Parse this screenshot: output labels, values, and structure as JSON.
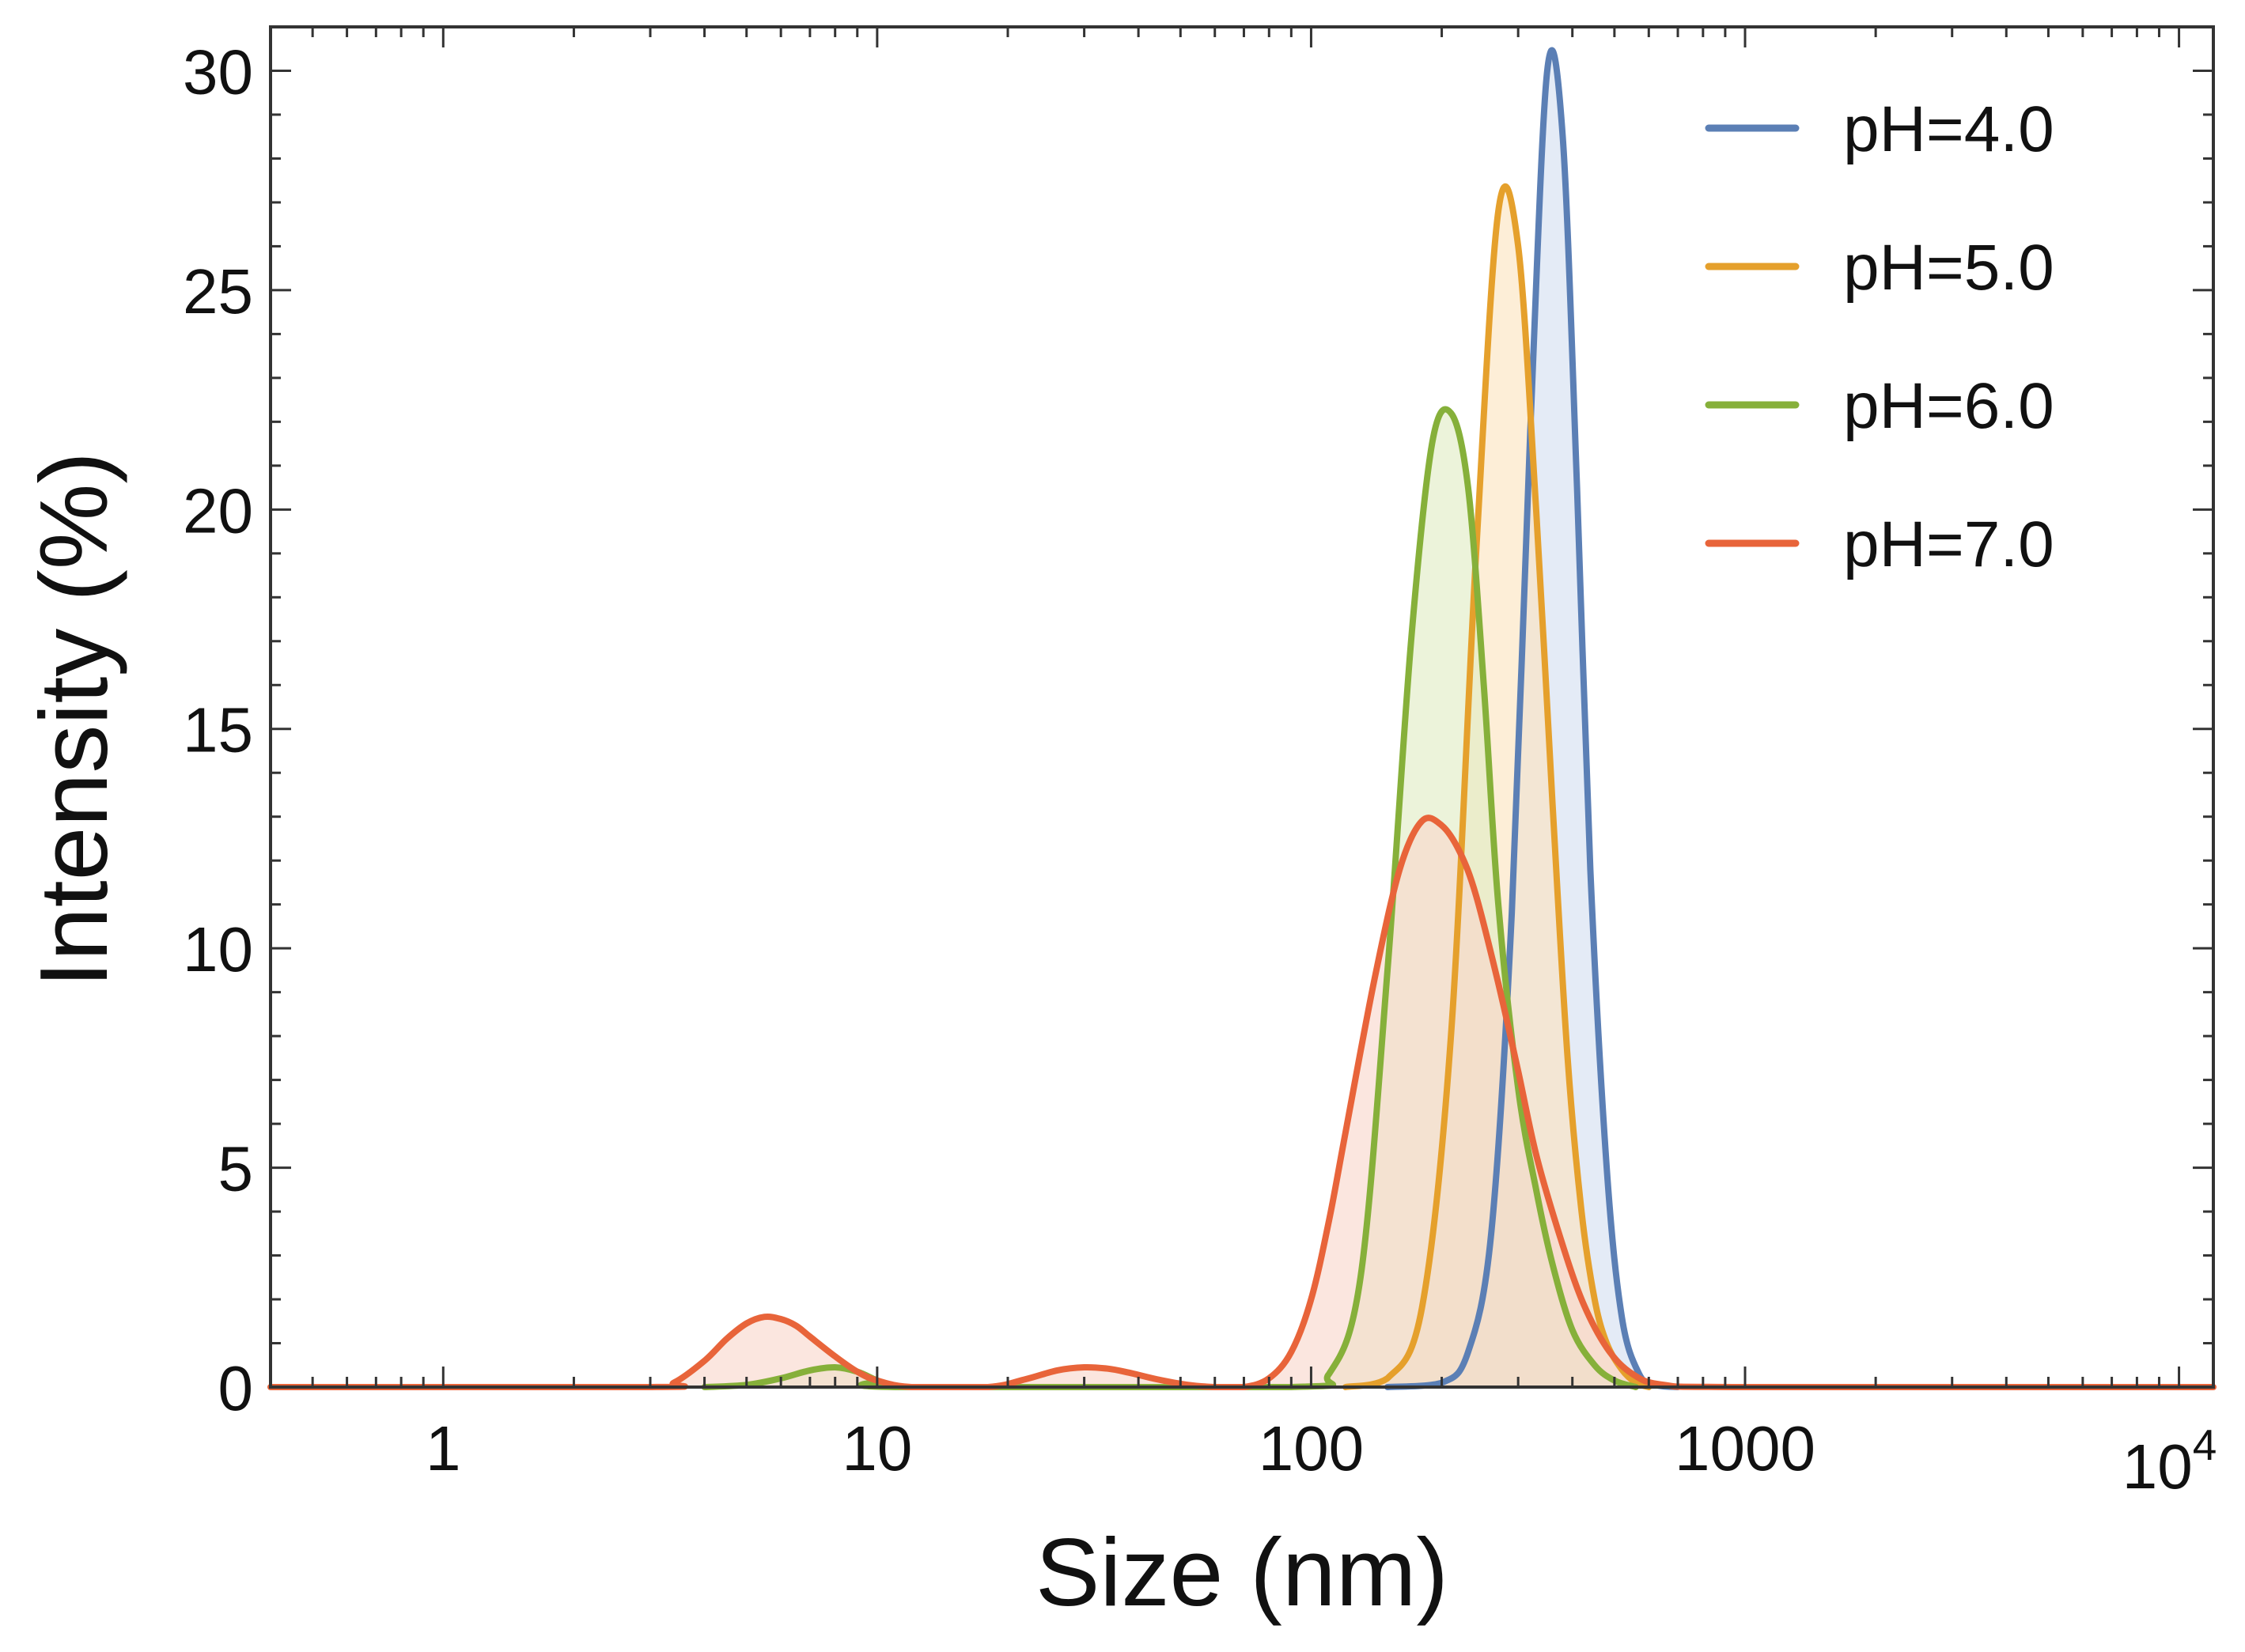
{
  "chart_data": {
    "type": "area",
    "title": "",
    "xlabel": "Size (nm)",
    "ylabel": "Intensity (%)",
    "x_scale": "log",
    "xlim": [
      0.4,
      12000
    ],
    "ylim": [
      0,
      31
    ],
    "x_ticks": [
      {
        "value": 1,
        "label": "1"
      },
      {
        "value": 10,
        "label": "10"
      },
      {
        "value": 100,
        "label": "100"
      },
      {
        "value": 1000,
        "label": "1000"
      },
      {
        "value": 10000,
        "label": "10",
        "exponent": "4"
      }
    ],
    "y_ticks": [
      {
        "value": 0,
        "label": "0"
      },
      {
        "value": 5,
        "label": "5"
      },
      {
        "value": 10,
        "label": "10"
      },
      {
        "value": 15,
        "label": "15"
      },
      {
        "value": 20,
        "label": "20"
      },
      {
        "value": 25,
        "label": "25"
      },
      {
        "value": 30,
        "label": "30"
      }
    ],
    "grid": false,
    "legend_position": "top-right",
    "series": [
      {
        "name": "pH=4.0",
        "color": "#5b7fb5",
        "fill": "#d4dff0",
        "x": [
          150,
          200,
          230,
          260,
          290,
          320,
          350,
          380,
          410,
          440,
          480,
          520,
          570,
          620,
          700
        ],
        "y": [
          0,
          0.1,
          0.8,
          3.5,
          10.8,
          21.8,
          30.0,
          28.5,
          20.5,
          11.8,
          5.0,
          1.6,
          0.3,
          0.05,
          0
        ]
      },
      {
        "name": "pH=5.0",
        "color": "#e5a02c",
        "fill": "#fbe3be",
        "x": [
          120,
          150,
          180,
          210,
          240,
          270,
          300,
          330,
          360,
          390,
          420,
          450,
          480,
          520,
          560,
          600
        ],
        "y": [
          0,
          0.2,
          1.8,
          8.0,
          19.0,
          26.8,
          26.0,
          20.0,
          13.3,
          7.5,
          4.0,
          2.0,
          1.0,
          0.4,
          0.1,
          0
        ]
      },
      {
        "name": "pH=6.0",
        "color": "#86b03a",
        "fill": "#e0ecc4",
        "x": [
          4,
          5,
          6,
          7,
          8,
          9,
          10,
          11,
          90,
          110,
          130,
          150,
          170,
          190,
          210,
          230,
          250,
          270,
          300,
          330,
          360,
          400,
          450,
          500,
          560
        ],
        "y": [
          0,
          0.05,
          0.2,
          0.38,
          0.45,
          0.35,
          0.15,
          0,
          0,
          0.3,
          2.5,
          9.5,
          17.0,
          21.5,
          22.2,
          20.5,
          16.0,
          11.0,
          6.8,
          4.5,
          2.8,
          1.3,
          0.5,
          0.15,
          0
        ]
      },
      {
        "name": "pH=7.0",
        "color": "#e8643a",
        "fill": "#f8d6cb",
        "x": [
          0.4,
          3,
          3.4,
          4,
          4.5,
          5,
          5.5,
          6,
          6.5,
          7,
          8,
          9,
          10,
          12,
          18,
          22,
          26,
          30,
          34,
          38,
          44,
          52,
          60,
          70,
          80,
          90,
          100,
          110,
          120,
          140,
          160,
          180,
          200,
          220,
          240,
          270,
          300,
          330,
          370,
          420,
          480,
          550,
          650,
          1000,
          12000
        ],
        "y": [
          0,
          0,
          0.1,
          0.6,
          1.1,
          1.45,
          1.6,
          1.55,
          1.4,
          1.15,
          0.7,
          0.35,
          0.15,
          0,
          0,
          0.18,
          0.38,
          0.45,
          0.42,
          0.33,
          0.18,
          0.05,
          0,
          0,
          0.2,
          0.8,
          2.0,
          3.8,
          5.8,
          9.3,
          11.8,
          12.9,
          12.8,
          12.2,
          11.2,
          9.2,
          7.2,
          5.3,
          3.6,
          2.0,
          0.9,
          0.3,
          0.05,
          0,
          0
        ]
      }
    ]
  }
}
